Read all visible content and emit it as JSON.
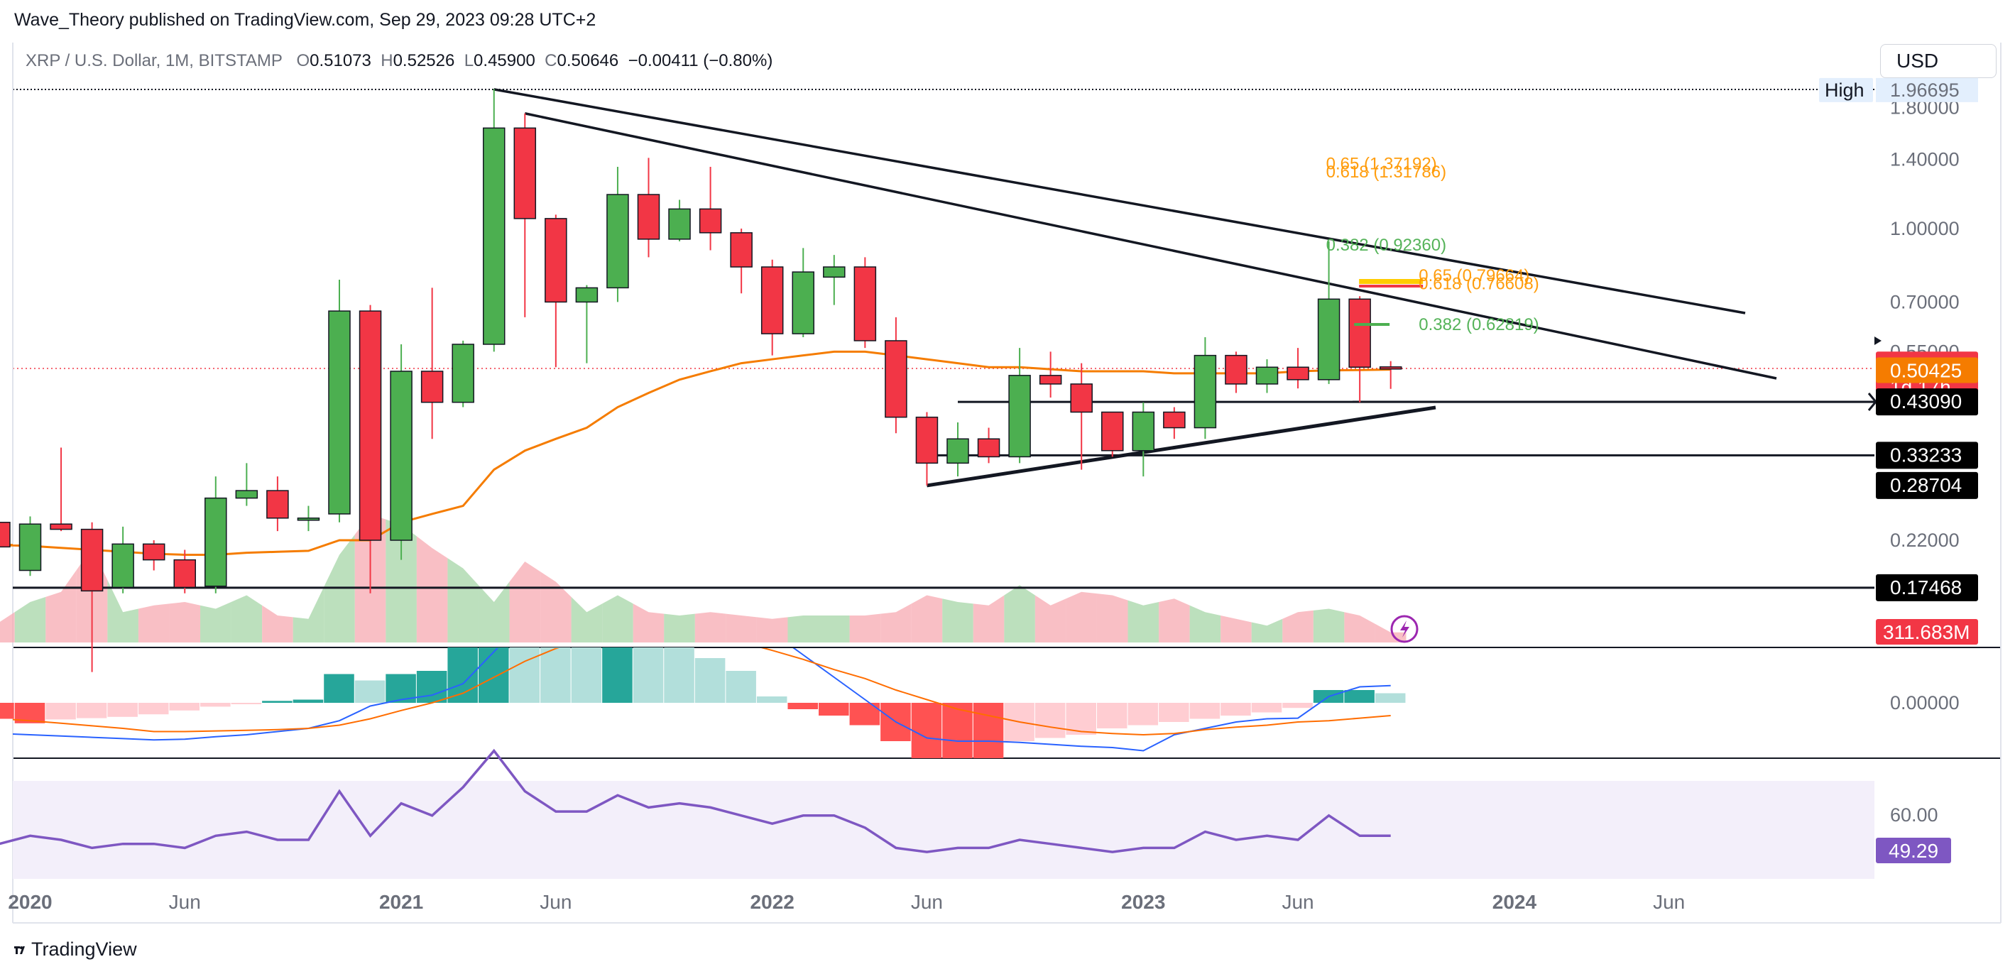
{
  "header": {
    "published": "Wave_Theory published on TradingView.com, Sep 29, 2023 09:28 UTC+2"
  },
  "symbol_bar": {
    "name": "XRP / U.S. Dollar, 1M, BITSTAMP",
    "o_label": "O",
    "o": "0.51073",
    "h_label": "H",
    "h": "0.52526",
    "l_label": "L",
    "l": "0.45900",
    "c_label": "C",
    "c": "0.50646",
    "change": "−0.00411 (−0.80%)"
  },
  "currency_button": "USD",
  "footer": {
    "brand": "TradingView"
  },
  "colors": {
    "up": "#4caf50",
    "down": "#f23645",
    "ma": "#f57c00",
    "macd": "#2962ff",
    "signal": "#ff6d00",
    "rsi": "#7e57c2",
    "fib_green": "#4caf50",
    "fib_orange": "#ff9800"
  },
  "chart_data": {
    "type": "candlestick",
    "y_scale": "log",
    "price_axis_labels": [
      "1.80000",
      "1.40000",
      "1.00000",
      "0.70000",
      "0.55000",
      "0.22000"
    ],
    "time_axis_labels": [
      "2020",
      "Jun",
      "2021",
      "Jun",
      "2022",
      "Jun",
      "2023",
      "Jun",
      "2024",
      "Jun"
    ],
    "time_axis_dates": [
      "2020-01",
      "2020-06",
      "2021-01",
      "2021-06",
      "2022-01",
      "2022-06",
      "2023-01",
      "2023-06",
      "2024-01",
      "2024-06"
    ],
    "candles": [
      {
        "t": "2019-12",
        "o": 0.24,
        "h": 0.245,
        "l": 0.215,
        "c": 0.213
      },
      {
        "t": "2020-01",
        "o": 0.19,
        "h": 0.247,
        "l": 0.185,
        "c": 0.238
      },
      {
        "t": "2020-02",
        "o": 0.238,
        "h": 0.345,
        "l": 0.23,
        "c": 0.232
      },
      {
        "t": "2020-03",
        "o": 0.232,
        "h": 0.24,
        "l": 0.116,
        "c": 0.172
      },
      {
        "t": "2020-04",
        "o": 0.175,
        "h": 0.235,
        "l": 0.17,
        "c": 0.216
      },
      {
        "t": "2020-05",
        "o": 0.216,
        "h": 0.22,
        "l": 0.19,
        "c": 0.2
      },
      {
        "t": "2020-06",
        "o": 0.2,
        "h": 0.21,
        "l": 0.17,
        "c": 0.175
      },
      {
        "t": "2020-07",
        "o": 0.176,
        "h": 0.3,
        "l": 0.17,
        "c": 0.27
      },
      {
        "t": "2020-08",
        "o": 0.27,
        "h": 0.32,
        "l": 0.26,
        "c": 0.28
      },
      {
        "t": "2020-09",
        "o": 0.28,
        "h": 0.3,
        "l": 0.23,
        "c": 0.245
      },
      {
        "t": "2020-10",
        "o": 0.245,
        "h": 0.26,
        "l": 0.23,
        "c": 0.245
      },
      {
        "t": "2020-11",
        "o": 0.25,
        "h": 0.78,
        "l": 0.24,
        "c": 0.67
      },
      {
        "t": "2020-12",
        "o": 0.67,
        "h": 0.69,
        "l": 0.17,
        "c": 0.22
      },
      {
        "t": "2021-01",
        "o": 0.22,
        "h": 0.57,
        "l": 0.2,
        "c": 0.5
      },
      {
        "t": "2021-02",
        "o": 0.5,
        "h": 0.75,
        "l": 0.36,
        "c": 0.43
      },
      {
        "t": "2021-03",
        "o": 0.43,
        "h": 0.58,
        "l": 0.42,
        "c": 0.57
      },
      {
        "t": "2021-04",
        "o": 0.57,
        "h": 1.97,
        "l": 0.55,
        "c": 1.63
      },
      {
        "t": "2021-05",
        "o": 1.63,
        "h": 1.75,
        "l": 0.65,
        "c": 1.05
      },
      {
        "t": "2021-06",
        "o": 1.05,
        "h": 1.07,
        "l": 0.51,
        "c": 0.7
      },
      {
        "t": "2021-07",
        "o": 0.7,
        "h": 0.76,
        "l": 0.52,
        "c": 0.75
      },
      {
        "t": "2021-08",
        "o": 0.75,
        "h": 1.35,
        "l": 0.7,
        "c": 1.18
      },
      {
        "t": "2021-09",
        "o": 1.18,
        "h": 1.41,
        "l": 0.87,
        "c": 0.95
      },
      {
        "t": "2021-10",
        "o": 0.95,
        "h": 1.15,
        "l": 0.94,
        "c": 1.1
      },
      {
        "t": "2021-11",
        "o": 1.1,
        "h": 1.35,
        "l": 0.9,
        "c": 0.98
      },
      {
        "t": "2021-12",
        "o": 0.98,
        "h": 1.0,
        "l": 0.73,
        "c": 0.83
      },
      {
        "t": "2022-01",
        "o": 0.83,
        "h": 0.86,
        "l": 0.54,
        "c": 0.6
      },
      {
        "t": "2022-02",
        "o": 0.6,
        "h": 0.91,
        "l": 0.59,
        "c": 0.81
      },
      {
        "t": "2022-03",
        "o": 0.79,
        "h": 0.88,
        "l": 0.69,
        "c": 0.83
      },
      {
        "t": "2022-04",
        "o": 0.83,
        "h": 0.87,
        "l": 0.56,
        "c": 0.58
      },
      {
        "t": "2022-05",
        "o": 0.58,
        "h": 0.65,
        "l": 0.37,
        "c": 0.4
      },
      {
        "t": "2022-06",
        "o": 0.4,
        "h": 0.41,
        "l": 0.287,
        "c": 0.32
      },
      {
        "t": "2022-07",
        "o": 0.32,
        "h": 0.39,
        "l": 0.3,
        "c": 0.36
      },
      {
        "t": "2022-08",
        "o": 0.36,
        "h": 0.38,
        "l": 0.32,
        "c": 0.33
      },
      {
        "t": "2022-09",
        "o": 0.33,
        "h": 0.56,
        "l": 0.32,
        "c": 0.49
      },
      {
        "t": "2022-10",
        "o": 0.49,
        "h": 0.55,
        "l": 0.44,
        "c": 0.47
      },
      {
        "t": "2022-11",
        "o": 0.47,
        "h": 0.52,
        "l": 0.31,
        "c": 0.41
      },
      {
        "t": "2022-12",
        "o": 0.41,
        "h": 0.41,
        "l": 0.33,
        "c": 0.34
      },
      {
        "t": "2023-01",
        "o": 0.34,
        "h": 0.43,
        "l": 0.3,
        "c": 0.41
      },
      {
        "t": "2023-02",
        "o": 0.41,
        "h": 0.42,
        "l": 0.36,
        "c": 0.38
      },
      {
        "t": "2023-03",
        "o": 0.38,
        "h": 0.59,
        "l": 0.36,
        "c": 0.54
      },
      {
        "t": "2023-04",
        "o": 0.54,
        "h": 0.55,
        "l": 0.45,
        "c": 0.47
      },
      {
        "t": "2023-05",
        "o": 0.47,
        "h": 0.53,
        "l": 0.45,
        "c": 0.51
      },
      {
        "t": "2023-06",
        "o": 0.51,
        "h": 0.56,
        "l": 0.46,
        "c": 0.48
      },
      {
        "t": "2023-07",
        "o": 0.48,
        "h": 0.94,
        "l": 0.47,
        "c": 0.71
      },
      {
        "t": "2023-08",
        "o": 0.71,
        "h": 0.72,
        "l": 0.43,
        "c": 0.51
      },
      {
        "t": "2023-09",
        "o": 0.51073,
        "h": 0.52526,
        "l": 0.459,
        "c": 0.50646
      }
    ],
    "ma": [
      0.215,
      0.214,
      0.212,
      0.21,
      0.208,
      0.206,
      0.205,
      0.205,
      0.207,
      0.208,
      0.209,
      0.22,
      0.22,
      0.24,
      0.25,
      0.26,
      0.31,
      0.34,
      0.36,
      0.38,
      0.42,
      0.45,
      0.48,
      0.5,
      0.52,
      0.53,
      0.54,
      0.55,
      0.55,
      0.54,
      0.53,
      0.52,
      0.51,
      0.51,
      0.505,
      0.5,
      0.5,
      0.5,
      0.495,
      0.495,
      0.495,
      0.495,
      0.5,
      0.502,
      0.503,
      0.504
    ],
    "volume_label": "311.683M",
    "volume": [
      30,
      60,
      75,
      140,
      45,
      55,
      60,
      50,
      70,
      40,
      35,
      130,
      190,
      175,
      140,
      110,
      60,
      120,
      90,
      45,
      70,
      45,
      40,
      45,
      40,
      35,
      40,
      40,
      40,
      45,
      70,
      60,
      55,
      85,
      55,
      75,
      70,
      55,
      65,
      45,
      35,
      25,
      45,
      50,
      40,
      15
    ],
    "macd": {
      "zero_label": "0.00000",
      "histogram": [
        -25,
        -32,
        -26,
        -24,
        -22,
        -18,
        -12,
        -6,
        -2,
        3,
        5,
        45,
        35,
        45,
        50,
        95,
        130,
        115,
        110,
        105,
        125,
        95,
        90,
        70,
        50,
        10,
        -10,
        -20,
        -35,
        -60,
        -90,
        -90,
        -90,
        -60,
        -55,
        -50,
        -40,
        -35,
        -30,
        -25,
        -20,
        -15,
        -8,
        20,
        20,
        15
      ],
      "macd_line": [
        -48,
        -50,
        -52,
        -54,
        -56,
        -58,
        -57,
        -53,
        -50,
        -45,
        -40,
        -28,
        -5,
        5,
        12,
        30,
        80,
        130,
        160,
        180,
        200,
        190,
        175,
        160,
        145,
        110,
        75,
        40,
        5,
        -30,
        -55,
        -60,
        -60,
        -62,
        -65,
        -68,
        -70,
        -75,
        -50,
        -40,
        -30,
        -25,
        -24,
        10,
        25,
        27
      ],
      "signal_line": [
        -25,
        -28,
        -32,
        -36,
        -40,
        -45,
        -45,
        -44,
        -43,
        -42,
        -40,
        -35,
        -25,
        -12,
        0,
        15,
        40,
        65,
        85,
        100,
        110,
        115,
        112,
        105,
        95,
        82,
        68,
        52,
        38,
        20,
        5,
        -10,
        -20,
        -30,
        -38,
        -45,
        -48,
        -50,
        -48,
        -42,
        -38,
        -35,
        -30,
        -28,
        -24,
        -20
      ]
    },
    "rsi": {
      "label": "49.29",
      "axis_label": "60.00",
      "values": [
        49,
        51,
        50,
        48,
        49,
        49,
        48,
        51,
        52,
        50,
        50,
        62,
        51,
        59,
        56,
        63,
        72,
        62,
        57,
        57,
        61,
        58,
        59,
        58,
        56,
        54,
        56,
        56,
        53,
        48,
        47,
        48,
        48,
        50,
        49,
        48,
        47,
        48,
        48,
        52,
        50,
        51,
        50,
        56,
        51,
        51
      ]
    },
    "price_tags": [
      {
        "label": "High",
        "value": "1.96695",
        "price": 1.96695,
        "kind": "high"
      },
      {
        "label": "",
        "value": "0.50646",
        "sub": "1d 17h",
        "price": 0.50646,
        "kind": "last"
      },
      {
        "label": "",
        "value": "0.50425",
        "price": 0.50425,
        "kind": "ma"
      },
      {
        "label": "",
        "value": "0.43090",
        "price": 0.4309,
        "kind": "level"
      },
      {
        "label": "",
        "value": "0.33233",
        "price": 0.33233,
        "kind": "level"
      },
      {
        "label": "",
        "value": "0.28704",
        "price": 0.28704,
        "kind": "level"
      },
      {
        "label": "",
        "value": "0.17468",
        "price": 0.17468,
        "kind": "level"
      }
    ],
    "fib_labels": [
      {
        "text": "0.618 (1.31786)",
        "price": 1.31786,
        "color": "orange",
        "x_date": "2023-07"
      },
      {
        "text": "0.65 (1.37192)",
        "price": 1.37192,
        "color": "orange",
        "x_date": "2023-07"
      },
      {
        "text": "0.382 (0.92360)",
        "price": 0.9236,
        "color": "green",
        "x_date": "2023-07"
      },
      {
        "text": "0.618 (0.76608)",
        "price": 0.76608,
        "color": "orange",
        "x_date": "2023-10"
      },
      {
        "text": "0.65 (0.79664)",
        "price": 0.79664,
        "color": "orange",
        "x_date": "2023-10"
      },
      {
        "text": "0.382 (0.62819)",
        "price": 0.62819,
        "color": "green",
        "x_date": "2023-10"
      }
    ]
  }
}
